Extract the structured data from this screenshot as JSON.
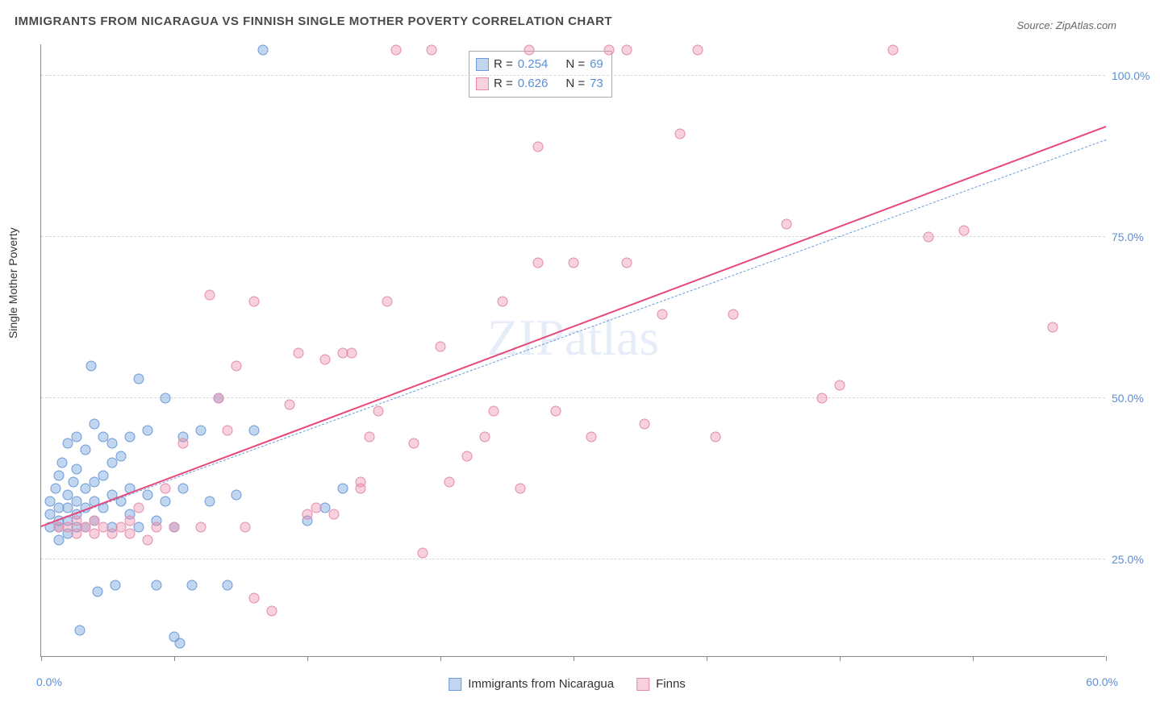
{
  "title": "IMMIGRANTS FROM NICARAGUA VS FINNISH SINGLE MOTHER POVERTY CORRELATION CHART",
  "source": "Source: ZipAtlas.com",
  "watermark": "ZIPatlas",
  "chart": {
    "type": "scatter",
    "yaxis_title": "Single Mother Poverty",
    "xlim": [
      0,
      60
    ],
    "ylim": [
      10,
      105
    ],
    "ytick_labels": [
      "25.0%",
      "50.0%",
      "75.0%",
      "100.0%"
    ],
    "ytick_values": [
      25,
      50,
      75,
      100
    ],
    "xtick_values": [
      0,
      7.5,
      15,
      22.5,
      30,
      37.5,
      45,
      52.5,
      60
    ],
    "xlabel_min": "0.0%",
    "xlabel_max": "60.0%",
    "background_color": "#ffffff",
    "grid_color": "#d8d8d8",
    "series": [
      {
        "name": "Immigrants from Nicaragua",
        "color_fill": "rgba(120,165,220,0.45)",
        "color_stroke": "#6a9bd8",
        "marker_size": 13,
        "R": "0.254",
        "N": "69",
        "trend": {
          "x1": 0,
          "y1": 30,
          "x2": 60,
          "y2": 90,
          "color": "#6a9bd8",
          "dash": true,
          "width": 1.5
        },
        "points": [
          [
            0.5,
            30
          ],
          [
            0.5,
            32
          ],
          [
            0.5,
            34
          ],
          [
            0.8,
            36
          ],
          [
            1,
            28
          ],
          [
            1,
            30
          ],
          [
            1,
            31
          ],
          [
            1,
            33
          ],
          [
            1,
            38
          ],
          [
            1.2,
            40
          ],
          [
            1.5,
            29
          ],
          [
            1.5,
            31
          ],
          [
            1.5,
            33
          ],
          [
            1.5,
            35
          ],
          [
            1.5,
            43
          ],
          [
            1.8,
            37
          ],
          [
            2,
            30
          ],
          [
            2,
            32
          ],
          [
            2,
            34
          ],
          [
            2,
            39
          ],
          [
            2,
            44
          ],
          [
            2.2,
            14
          ],
          [
            2.5,
            30
          ],
          [
            2.5,
            33
          ],
          [
            2.5,
            36
          ],
          [
            2.5,
            42
          ],
          [
            2.8,
            55
          ],
          [
            3,
            31
          ],
          [
            3,
            34
          ],
          [
            3,
            37
          ],
          [
            3,
            46
          ],
          [
            3.2,
            20
          ],
          [
            3.5,
            33
          ],
          [
            3.5,
            38
          ],
          [
            3.5,
            44
          ],
          [
            4,
            30
          ],
          [
            4,
            35
          ],
          [
            4,
            40
          ],
          [
            4,
            43
          ],
          [
            4.2,
            21
          ],
          [
            4.5,
            34
          ],
          [
            4.5,
            41
          ],
          [
            5,
            32
          ],
          [
            5,
            36
          ],
          [
            5,
            44
          ],
          [
            5.5,
            30
          ],
          [
            5.5,
            53
          ],
          [
            6,
            35
          ],
          [
            6,
            45
          ],
          [
            6.5,
            31
          ],
          [
            6.5,
            21
          ],
          [
            7,
            34
          ],
          [
            7,
            50
          ],
          [
            7.5,
            30
          ],
          [
            7.5,
            13
          ],
          [
            7.8,
            12
          ],
          [
            8,
            36
          ],
          [
            8,
            44
          ],
          [
            8.5,
            21
          ],
          [
            9,
            45
          ],
          [
            9.5,
            34
          ],
          [
            10,
            50
          ],
          [
            10.5,
            21
          ],
          [
            11,
            35
          ],
          [
            12,
            45
          ],
          [
            12.5,
            104
          ],
          [
            15,
            31
          ],
          [
            16,
            33
          ],
          [
            17,
            36
          ]
        ]
      },
      {
        "name": "Finns",
        "color_fill": "rgba(235,140,170,0.40)",
        "color_stroke": "#e68aa8",
        "marker_size": 13,
        "R": "0.626",
        "N": "73",
        "trend": {
          "x1": 0,
          "y1": 30,
          "x2": 60,
          "y2": 92,
          "color": "#e8487a",
          "dash": false,
          "width": 2.5
        },
        "points": [
          [
            1,
            30
          ],
          [
            1.5,
            30
          ],
          [
            2,
            29
          ],
          [
            2,
            31
          ],
          [
            2.5,
            30
          ],
          [
            3,
            29
          ],
          [
            3,
            31
          ],
          [
            3.5,
            30
          ],
          [
            4,
            29
          ],
          [
            4.5,
            30
          ],
          [
            5,
            29
          ],
          [
            5,
            31
          ],
          [
            5.5,
            33
          ],
          [
            6,
            28
          ],
          [
            6.5,
            30
          ],
          [
            7,
            36
          ],
          [
            7.5,
            30
          ],
          [
            8,
            43
          ],
          [
            9,
            30
          ],
          [
            9.5,
            66
          ],
          [
            10,
            50
          ],
          [
            10.5,
            45
          ],
          [
            11,
            55
          ],
          [
            11.5,
            30
          ],
          [
            12,
            19
          ],
          [
            13,
            17
          ],
          [
            14,
            49
          ],
          [
            14.5,
            57
          ],
          [
            15,
            32
          ],
          [
            15.5,
            33
          ],
          [
            16,
            56
          ],
          [
            16.5,
            32
          ],
          [
            17,
            57
          ],
          [
            17.5,
            57
          ],
          [
            18,
            37
          ],
          [
            18.5,
            44
          ],
          [
            19,
            48
          ],
          [
            19.5,
            65
          ],
          [
            20,
            104
          ],
          [
            21,
            43
          ],
          [
            21.5,
            26
          ],
          [
            22,
            104
          ],
          [
            22.5,
            58
          ],
          [
            23,
            37
          ],
          [
            24,
            41
          ],
          [
            25,
            44
          ],
          [
            25.5,
            48
          ],
          [
            26,
            65
          ],
          [
            27,
            36
          ],
          [
            27.5,
            104
          ],
          [
            28,
            89
          ],
          [
            29,
            48
          ],
          [
            30,
            71
          ],
          [
            31,
            44
          ],
          [
            32,
            104
          ],
          [
            33,
            71
          ],
          [
            34,
            46
          ],
          [
            35,
            63
          ],
          [
            36,
            91
          ],
          [
            37,
            104
          ],
          [
            38,
            44
          ],
          [
            39,
            63
          ],
          [
            42,
            77
          ],
          [
            44,
            50
          ],
          [
            45,
            52
          ],
          [
            48,
            104
          ],
          [
            50,
            75
          ],
          [
            52,
            76
          ],
          [
            57,
            61
          ],
          [
            33,
            104
          ],
          [
            28,
            71
          ],
          [
            18,
            36
          ],
          [
            12,
            65
          ]
        ]
      }
    ],
    "legend_stats_labels": {
      "R": "R =",
      "N": "N ="
    },
    "bottom_legend": [
      {
        "label": "Immigrants from Nicaragua",
        "fill": "rgba(120,165,220,0.45)",
        "stroke": "#6a9bd8"
      },
      {
        "label": "Finns",
        "fill": "rgba(235,140,170,0.40)",
        "stroke": "#e68aa8"
      }
    ]
  }
}
